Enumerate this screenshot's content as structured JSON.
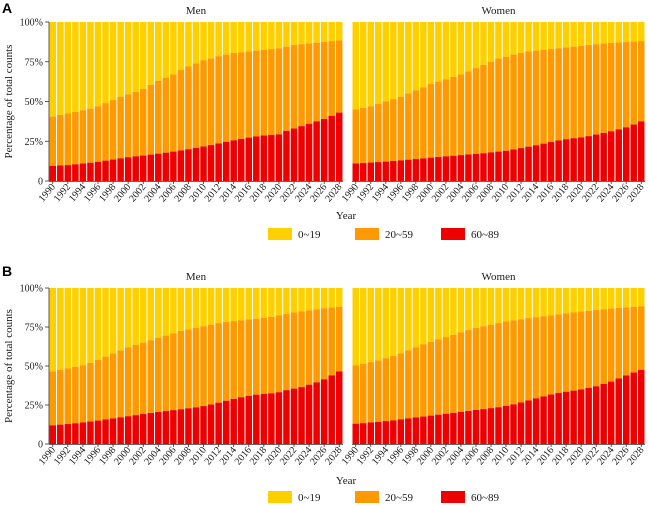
{
  "chart_data": [
    {
      "panel_label": "A",
      "type": "bar",
      "stacked": true,
      "facets": [
        "Men",
        "Women"
      ],
      "xlabel": "Year",
      "ylabel": "Percentage of total counts",
      "ylim": [
        0,
        100
      ],
      "y_ticks": [
        "0",
        "25%",
        "50%",
        "75%",
        "100%"
      ],
      "x_tick_labels": [
        "1990",
        "1992",
        "1994",
        "1996",
        "1998",
        "2000",
        "2002",
        "2004",
        "2006",
        "2008",
        "2010",
        "2012",
        "2014",
        "2016",
        "2018",
        "2020",
        "2022",
        "2024",
        "2026",
        "2028"
      ],
      "legend": {
        "position": "bottom",
        "entries": [
          "0~19",
          "20~59",
          "60~89"
        ]
      },
      "colors": {
        "0~19": "#FFD000",
        "20~59": "#FF9900",
        "60~89": "#EE0000"
      },
      "years": [
        1990,
        1991,
        1992,
        1993,
        1994,
        1995,
        1996,
        1997,
        1998,
        1999,
        2000,
        2001,
        2002,
        2003,
        2004,
        2005,
        2006,
        2007,
        2008,
        2009,
        2010,
        2011,
        2012,
        2013,
        2014,
        2015,
        2016,
        2017,
        2018,
        2019,
        2020,
        2021,
        2022,
        2023,
        2024,
        2025,
        2026,
        2027,
        2028
      ],
      "series_by_facet": {
        "Men": {
          "60~89": [
            9.5,
            9.8,
            10,
            10.5,
            11,
            11.5,
            12,
            12.8,
            13.5,
            14.2,
            15,
            15.5,
            16,
            16.6,
            17.2,
            17.8,
            18.5,
            19.2,
            20,
            20.8,
            21.7,
            22.6,
            23.6,
            24.6,
            25.6,
            26.5,
            27.3,
            28,
            28.6,
            29,
            29.3,
            31.5,
            33,
            34.5,
            36,
            37.5,
            39,
            41,
            43
          ],
          "0~59": [
            40.5,
            41.5,
            42.5,
            43.5,
            44.5,
            45.5,
            47,
            49,
            51,
            53,
            54.5,
            56,
            58,
            60.5,
            63,
            65,
            67,
            70,
            72,
            74,
            76,
            77,
            78.5,
            79.5,
            80.5,
            81,
            81.5,
            82,
            82.5,
            83,
            83.5,
            84.5,
            85.5,
            86,
            86.5,
            87,
            87.5,
            88,
            88.5
          ]
        },
        "Women": {
          "60~89": [
            11,
            11.3,
            11.6,
            11.9,
            12.2,
            12.6,
            13,
            13.4,
            13.8,
            14.2,
            14.7,
            15.1,
            15.5,
            15.9,
            16.3,
            16.7,
            17.1,
            17.5,
            18,
            18.5,
            19,
            19.8,
            20.7,
            21.6,
            22.5,
            23.5,
            24.5,
            25.5,
            26.3,
            26.9,
            27.4,
            28.2,
            29.2,
            30.2,
            31.3,
            32.5,
            33.8,
            35.5,
            37.5
          ],
          "0~59": [
            45,
            46,
            47,
            48.5,
            50,
            51.5,
            53,
            55,
            57,
            59,
            61,
            62.5,
            64,
            65.5,
            67,
            69,
            71,
            73,
            75,
            77,
            78,
            79.5,
            80.5,
            81.5,
            82,
            82.5,
            83,
            83.5,
            84,
            84.5,
            85,
            85.5,
            86,
            86.5,
            86.8,
            87.1,
            87.4,
            87.7,
            88
          ]
        }
      }
    },
    {
      "panel_label": "B",
      "type": "bar",
      "stacked": true,
      "facets": [
        "Men",
        "Women"
      ],
      "xlabel": "Year",
      "ylabel": "Percentage of total counts",
      "ylim": [
        0,
        100
      ],
      "y_ticks": [
        "0",
        "25%",
        "50%",
        "75%",
        "100%"
      ],
      "x_tick_labels": [
        "1990",
        "1992",
        "1994",
        "1996",
        "1998",
        "2000",
        "2002",
        "2004",
        "2006",
        "2008",
        "2010",
        "2012",
        "2014",
        "2016",
        "2018",
        "2020",
        "2022",
        "2024",
        "2026",
        "2028"
      ],
      "legend": {
        "position": "bottom",
        "entries": [
          "0~19",
          "20~59",
          "60~89"
        ]
      },
      "colors": {
        "0~19": "#FFD000",
        "20~59": "#FF9900",
        "60~89": "#EE0000"
      },
      "years": [
        1990,
        1991,
        1992,
        1993,
        1994,
        1995,
        1996,
        1997,
        1998,
        1999,
        2000,
        2001,
        2002,
        2003,
        2004,
        2005,
        2006,
        2007,
        2008,
        2009,
        2010,
        2011,
        2012,
        2013,
        2014,
        2015,
        2016,
        2017,
        2018,
        2019,
        2020,
        2021,
        2022,
        2023,
        2024,
        2025,
        2026,
        2027,
        2028
      ],
      "series_by_facet": {
        "Men": {
          "60~89": [
            12,
            12.4,
            12.8,
            13.3,
            13.8,
            14.4,
            15,
            15.7,
            16.4,
            17.1,
            17.8,
            18.5,
            19.2,
            19.9,
            20.5,
            21.1,
            21.7,
            22.3,
            22.9,
            23.5,
            24.3,
            25.3,
            26.5,
            27.7,
            28.9,
            30,
            30.9,
            31.6,
            32.1,
            32.5,
            33.2,
            34.5,
            35.5,
            36.5,
            38,
            39.5,
            41.5,
            44,
            46.5
          ],
          "0~59": [
            46.5,
            47.5,
            48.5,
            49.5,
            50.5,
            52,
            54,
            56,
            58,
            60,
            62,
            63.5,
            65,
            66.5,
            68,
            69.5,
            71,
            72.5,
            73.5,
            74.5,
            75.5,
            76.5,
            77.5,
            78.2,
            78.8,
            79.3,
            79.8,
            80.3,
            80.8,
            81.5,
            82.5,
            83.5,
            84.3,
            85,
            85.7,
            86.3,
            87,
            87.5,
            88
          ]
        },
        "Women": {
          "60~89": [
            13,
            13.4,
            13.8,
            14.2,
            14.7,
            15.2,
            15.8,
            16.4,
            17,
            17.6,
            18.2,
            18.8,
            19.4,
            20,
            20.6,
            21.2,
            21.8,
            22.4,
            23,
            23.6,
            24.4,
            25.4,
            26.6,
            27.9,
            29.2,
            30.5,
            31.7,
            32.7,
            33.5,
            34.2,
            35,
            36,
            37,
            38.5,
            40,
            42,
            44,
            45.8,
            47.5
          ],
          "0~59": [
            50.5,
            51.5,
            52.5,
            53.5,
            55,
            56.5,
            58,
            60,
            62,
            64,
            65.5,
            67,
            68.5,
            70,
            71.5,
            73,
            74.5,
            75.5,
            76.5,
            77.5,
            78.5,
            79.3,
            80,
            80.7,
            81.3,
            81.9,
            82.5,
            83.1,
            83.7,
            84.3,
            84.9,
            85.4,
            85.9,
            86.4,
            86.8,
            87.2,
            87.6,
            88,
            88.3
          ]
        }
      }
    }
  ]
}
